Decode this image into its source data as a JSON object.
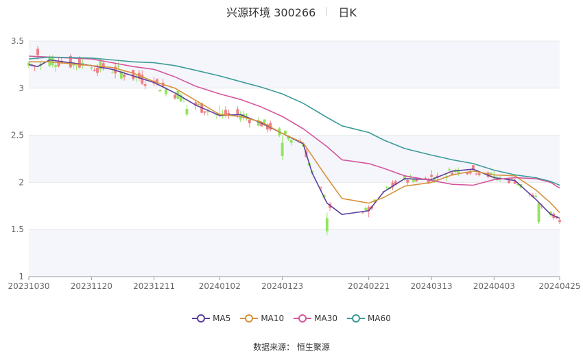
{
  "header": {
    "stock": "兴源环境 300266",
    "period": "日K"
  },
  "source": "数据来源： 恒生聚源",
  "colors": {
    "up": "#f07f84",
    "down": "#93e45f",
    "ma5": "#5b3f9e",
    "ma10": "#d8913b",
    "ma30": "#d6559c",
    "ma60": "#3d9a98",
    "grid": "#e8e8e8",
    "band": "#f4f6fb"
  },
  "legend": [
    {
      "key": "ma5",
      "label": "MA5"
    },
    {
      "key": "ma10",
      "label": "MA10"
    },
    {
      "key": "ma30",
      "label": "MA30"
    },
    {
      "key": "ma60",
      "label": "MA60"
    }
  ],
  "chart_data": {
    "type": "candlestick",
    "title": "兴源环境 300266",
    "ylim": [
      1,
      3.5
    ],
    "yticks": [
      "1",
      "1.5",
      "2",
      "2.5",
      "3",
      "3.5"
    ],
    "xticks": [
      "20231030",
      "20231120",
      "20231211",
      "20240102",
      "20240123",
      "20240221",
      "20240313",
      "20240403",
      "20240425"
    ],
    "grid": true,
    "legend_position": "bottom",
    "ohlc_anchors": [
      {
        "date": "20231030",
        "open": 3.27,
        "high": 3.29,
        "low": 3.21,
        "close": 3.24
      },
      {
        "date": "20231102",
        "open": 3.35,
        "high": 3.45,
        "low": 3.3,
        "close": 3.42
      },
      {
        "date": "20231120",
        "open": 3.22,
        "high": 3.25,
        "low": 3.19,
        "close": 3.21
      },
      {
        "date": "20231211",
        "open": 3.05,
        "high": 3.12,
        "low": 3.02,
        "close": 3.08
      },
      {
        "date": "20231222",
        "open": 2.78,
        "high": 2.82,
        "low": 2.7,
        "close": 2.72
      },
      {
        "date": "20240102",
        "open": 2.73,
        "high": 2.82,
        "low": 2.69,
        "close": 2.71
      },
      {
        "date": "20240123",
        "open": 2.42,
        "high": 2.5,
        "low": 2.24,
        "close": 2.28
      },
      {
        "date": "20240207",
        "open": 1.62,
        "high": 1.68,
        "low": 1.44,
        "close": 1.48
      },
      {
        "date": "20240221",
        "open": 1.7,
        "high": 1.76,
        "low": 1.63,
        "close": 1.74
      },
      {
        "date": "20240313",
        "open": 2.06,
        "high": 2.13,
        "low": 2.02,
        "close": 2.08
      },
      {
        "date": "20240403",
        "open": 2.07,
        "high": 2.12,
        "low": 2.03,
        "close": 2.05
      },
      {
        "date": "20240418",
        "open": 1.78,
        "high": 1.8,
        "low": 1.56,
        "close": 1.58
      },
      {
        "date": "20240425",
        "open": 1.58,
        "high": 1.63,
        "low": 1.56,
        "close": 1.6
      }
    ],
    "series": [
      {
        "name": "MA5",
        "points": [
          [
            "20231030",
            3.25
          ],
          [
            "20231102",
            3.23
          ],
          [
            "20231106",
            3.3
          ],
          [
            "20231120",
            3.24
          ],
          [
            "20231127",
            3.2
          ],
          [
            "20231204",
            3.13
          ],
          [
            "20231211",
            3.06
          ],
          [
            "20231218",
            2.95
          ],
          [
            "20231225",
            2.82
          ],
          [
            "20240102",
            2.71
          ],
          [
            "20240109",
            2.72
          ],
          [
            "20240116",
            2.63
          ],
          [
            "20240123",
            2.52
          ],
          [
            "20240130",
            2.41
          ],
          [
            "20240202",
            2.1
          ],
          [
            "20240207",
            1.78
          ],
          [
            "20240212",
            1.66
          ],
          [
            "20240221",
            1.7
          ],
          [
            "20240226",
            1.9
          ],
          [
            "20240304",
            2.04
          ],
          [
            "20240313",
            2.03
          ],
          [
            "20240320",
            2.12
          ],
          [
            "20240327",
            2.14
          ],
          [
            "20240403",
            2.05
          ],
          [
            "20240410",
            2.02
          ],
          [
            "20240417",
            1.82
          ],
          [
            "20240422",
            1.66
          ],
          [
            "20240425",
            1.62
          ]
        ]
      },
      {
        "name": "MA10",
        "points": [
          [
            "20231030",
            3.28
          ],
          [
            "20231106",
            3.28
          ],
          [
            "20231120",
            3.24
          ],
          [
            "20231127",
            3.22
          ],
          [
            "20231204",
            3.16
          ],
          [
            "20231211",
            3.07
          ],
          [
            "20231218",
            3.0
          ],
          [
            "20231225",
            2.87
          ],
          [
            "20240102",
            2.72
          ],
          [
            "20240109",
            2.7
          ],
          [
            "20240116",
            2.64
          ],
          [
            "20240123",
            2.52
          ],
          [
            "20240130",
            2.42
          ],
          [
            "20240207",
            2.05
          ],
          [
            "20240212",
            1.83
          ],
          [
            "20240221",
            1.78
          ],
          [
            "20240226",
            1.84
          ],
          [
            "20240304",
            1.96
          ],
          [
            "20240313",
            2.0
          ],
          [
            "20240320",
            2.08
          ],
          [
            "20240327",
            2.12
          ],
          [
            "20240403",
            2.08
          ],
          [
            "20240410",
            2.07
          ],
          [
            "20240417",
            1.92
          ],
          [
            "20240422",
            1.78
          ],
          [
            "20240425",
            1.68
          ]
        ]
      },
      {
        "name": "MA30",
        "points": [
          [
            "20231030",
            3.34
          ],
          [
            "20231106",
            3.33
          ],
          [
            "20231120",
            3.31
          ],
          [
            "20231127",
            3.27
          ],
          [
            "20231204",
            3.23
          ],
          [
            "20231211",
            3.2
          ],
          [
            "20231218",
            3.12
          ],
          [
            "20231225",
            3.02
          ],
          [
            "20240102",
            2.94
          ],
          [
            "20240109",
            2.88
          ],
          [
            "20240116",
            2.8
          ],
          [
            "20240123",
            2.7
          ],
          [
            "20240130",
            2.57
          ],
          [
            "20240207",
            2.38
          ],
          [
            "20240212",
            2.24
          ],
          [
            "20240221",
            2.2
          ],
          [
            "20240226",
            2.15
          ],
          [
            "20240304",
            2.07
          ],
          [
            "20240313",
            2.02
          ],
          [
            "20240320",
            1.98
          ],
          [
            "20240327",
            1.97
          ],
          [
            "20240403",
            2.03
          ],
          [
            "20240410",
            2.05
          ],
          [
            "20240417",
            2.04
          ],
          [
            "20240422",
            2.0
          ],
          [
            "20240425",
            1.94
          ]
        ]
      },
      {
        "name": "MA60",
        "points": [
          [
            "20231030",
            3.31
          ],
          [
            "20231106",
            3.33
          ],
          [
            "20231120",
            3.32
          ],
          [
            "20231127",
            3.3
          ],
          [
            "20231204",
            3.28
          ],
          [
            "20231211",
            3.27
          ],
          [
            "20231218",
            3.24
          ],
          [
            "20231225",
            3.19
          ],
          [
            "20240102",
            3.13
          ],
          [
            "20240109",
            3.07
          ],
          [
            "20240116",
            3.01
          ],
          [
            "20240123",
            2.94
          ],
          [
            "20240130",
            2.84
          ],
          [
            "20240207",
            2.69
          ],
          [
            "20240212",
            2.6
          ],
          [
            "20240221",
            2.53
          ],
          [
            "20240226",
            2.45
          ],
          [
            "20240304",
            2.36
          ],
          [
            "20240313",
            2.29
          ],
          [
            "20240320",
            2.24
          ],
          [
            "20240327",
            2.2
          ],
          [
            "20240403",
            2.13
          ],
          [
            "20240410",
            2.08
          ],
          [
            "20240417",
            2.05
          ],
          [
            "20240422",
            2.01
          ],
          [
            "20240425",
            1.97
          ]
        ]
      }
    ]
  }
}
